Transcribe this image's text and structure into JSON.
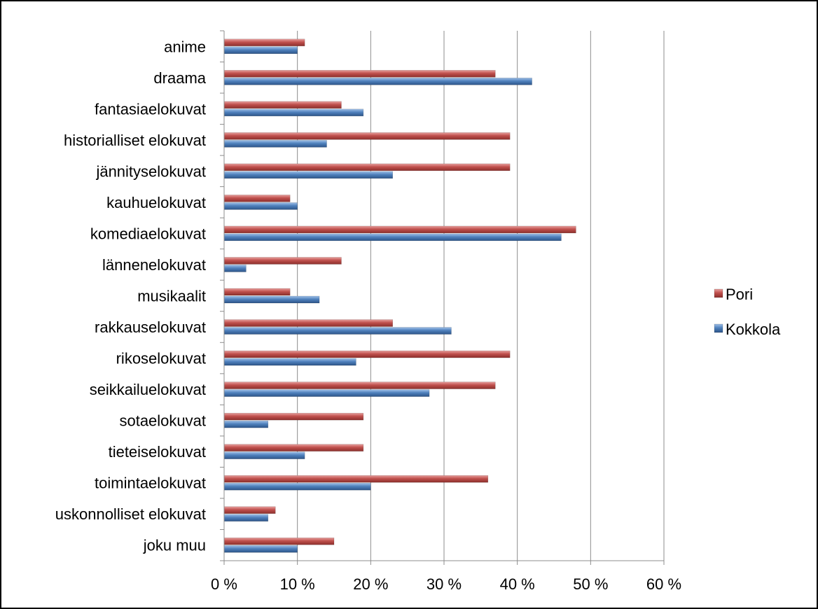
{
  "chart_data": {
    "type": "bar",
    "orientation": "horizontal",
    "categories": [
      "anime",
      "draama",
      "fantasiaelokuvat",
      "historialliset elokuvat",
      "jännityselokuvat",
      "kauhuelokuvat",
      "komediaelokuvat",
      "lännenelokuvat",
      "musikaalit",
      "rakkauselokuvat",
      "rikoselokuvat",
      "seikkailuelokuvat",
      "sotaelokuvat",
      "tieteiselokuvat",
      "toimintaelokuvat",
      "uskonnolliset elokuvat",
      "joku muu"
    ],
    "series": [
      {
        "name": "Pori",
        "color": "#c0504d",
        "values": [
          11,
          37,
          16,
          39,
          39,
          9,
          48,
          16,
          9,
          23,
          39,
          37,
          19,
          19,
          36,
          7,
          15
        ]
      },
      {
        "name": "Kokkola",
        "color": "#4f81bd",
        "values": [
          10,
          42,
          19,
          14,
          23,
          10,
          46,
          3,
          13,
          31,
          18,
          28,
          6,
          11,
          20,
          6,
          10
        ]
      }
    ],
    "xlim": [
      0,
      60
    ],
    "xticks": [
      "0 %",
      "10 %",
      "20 %",
      "30 %",
      "40 %",
      "50 %",
      "60 %"
    ],
    "xlabel": "",
    "ylabel": "",
    "title": "",
    "grid": "vertical",
    "legend_position": "right"
  }
}
